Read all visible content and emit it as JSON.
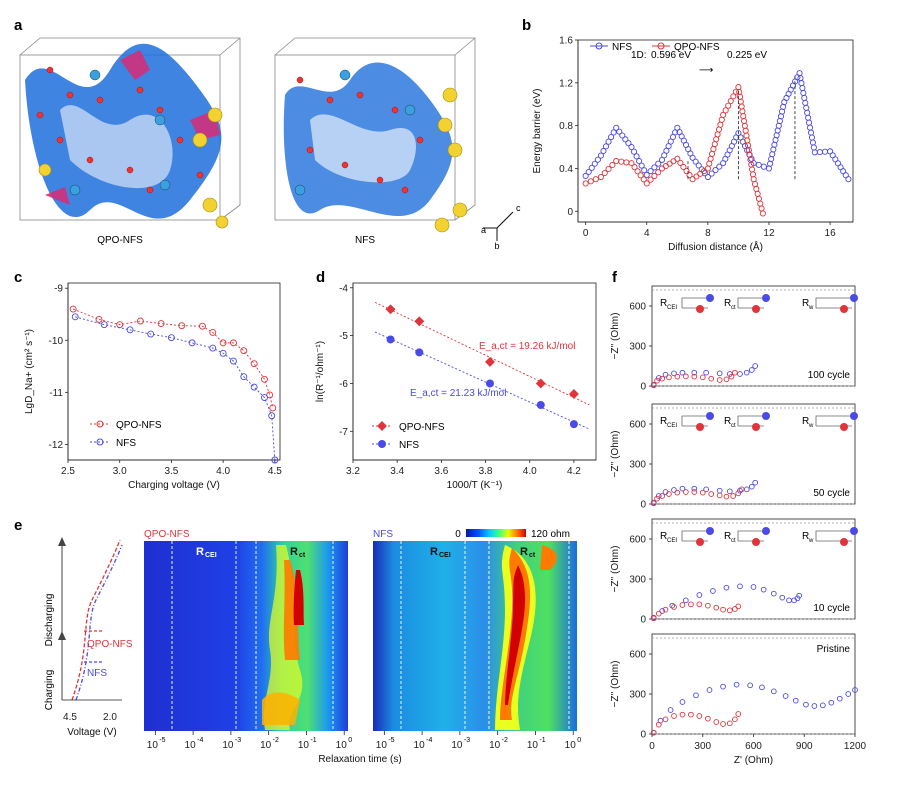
{
  "panel_labels": [
    "a",
    "b",
    "c",
    "d",
    "e",
    "f"
  ],
  "panel_a": {
    "structures": [
      "QPO-NFS",
      "NFS"
    ],
    "axes_labels": [
      "a",
      "b",
      "c"
    ]
  },
  "panel_e": {
    "legend_qpo": "QPO-NFS",
    "legend_nfs": "NFS",
    "label_discharging": "Discharging",
    "label_charging": "Charging",
    "voltage_xlabel": "Voltage (V)",
    "voltage_ticks": [
      "4.5",
      "2.0"
    ],
    "heatmap_titles": [
      "QPO-NFS",
      "NFS"
    ],
    "colorbar_min": "0",
    "colorbar_max": "120 ohm",
    "region_labels": [
      "R",
      "CEI",
      "R",
      "ct"
    ],
    "xlabel": "Relaxation time (s)",
    "x_ticks": [
      "10",
      "-5",
      "10",
      "-4",
      "10",
      "-3",
      "10",
      "-2",
      "10",
      "-1",
      "10",
      "0"
    ],
    "colors": {
      "qpo": "#e0343a",
      "nfs": "#4a4ae6"
    }
  },
  "panel_f": {
    "cycles": [
      "100 cycle",
      "50 cycle",
      "10 cycle",
      "Pristine"
    ],
    "ylabel": "−Z'' (Ohm)",
    "xlabel": "Z' (Ohm)",
    "x_ticks": [
      "0",
      "300",
      "600",
      "900",
      "1200"
    ],
    "y_ticks": [
      "0",
      "300",
      "600"
    ],
    "circuit_labels": [
      "R",
      "CEI",
      "R",
      "ct",
      "R",
      "w"
    ]
  },
  "chart_data": [
    {
      "id": "b",
      "type": "line",
      "title": "",
      "xlabel": "Diffusion distance (Å)",
      "ylabel": "Energy barrier (eV)",
      "xlim": [
        -0.5,
        17.5
      ],
      "ylim": [
        -0.1,
        1.6
      ],
      "x_ticks": [
        "0",
        "4",
        "8",
        "12",
        "16"
      ],
      "y_ticks": [
        "0",
        "0.4",
        "0.8",
        "1.2",
        "1.6"
      ],
      "annotation": {
        "prefix": "1D:",
        "from": "0.596 eV",
        "to": "0.225 eV"
      },
      "legend_position": "top",
      "series": [
        {
          "name": "NFS",
          "color": "#4a4ae6",
          "x": [
            0,
            1,
            2,
            3,
            4,
            5,
            6,
            7,
            8,
            9,
            10,
            11,
            12,
            13,
            14,
            15,
            16,
            17.2
          ],
          "y": [
            0.33,
            0.52,
            0.78,
            0.6,
            0.34,
            0.48,
            0.78,
            0.5,
            0.32,
            0.45,
            0.73,
            0.45,
            0.4,
            1.02,
            1.29,
            0.55,
            0.56,
            0.3
          ]
        },
        {
          "name": "QPO-NFS",
          "color": "#e0343a",
          "x": [
            0,
            1,
            2,
            3,
            4,
            5,
            6,
            7,
            8,
            9,
            10,
            11,
            11.6
          ],
          "y": [
            0.26,
            0.32,
            0.47,
            0.45,
            0.26,
            0.4,
            0.49,
            0.3,
            0.4,
            0.9,
            1.16,
            0.3,
            -0.02
          ]
        }
      ],
      "dashed_markers_x": [
        6.7,
        10,
        13.7
      ]
    },
    {
      "id": "c",
      "type": "line",
      "title": "",
      "xlabel": "Charging voltage (V)",
      "ylabel": "LgD_Na+ (cm² s⁻¹)",
      "xlim": [
        2.5,
        4.55
      ],
      "ylim": [
        -12.3,
        -8.9
      ],
      "x_ticks": [
        "2.5",
        "3.0",
        "3.5",
        "4.0",
        "4.5"
      ],
      "y_ticks": [
        "-9",
        "-10",
        "-11",
        "-12"
      ],
      "legend_position": "bottom-left",
      "series": [
        {
          "name": "QPO-NFS",
          "color": "#e0343a",
          "x": [
            2.55,
            2.8,
            3.0,
            3.2,
            3.4,
            3.6,
            3.8,
            3.9,
            4.0,
            4.1,
            4.2,
            4.3,
            4.4,
            4.45,
            4.48
          ],
          "y": [
            -9.4,
            -9.6,
            -9.7,
            -9.63,
            -9.68,
            -9.72,
            -9.73,
            -9.85,
            -10.05,
            -10.05,
            -10.2,
            -10.45,
            -10.75,
            -11.05,
            -11.3
          ]
        },
        {
          "name": "NFS",
          "color": "#4a4ae6",
          "x": [
            2.57,
            2.85,
            3.1,
            3.3,
            3.5,
            3.7,
            3.9,
            4.0,
            4.1,
            4.2,
            4.3,
            4.4,
            4.47,
            4.5
          ],
          "y": [
            -9.55,
            -9.7,
            -9.8,
            -9.88,
            -9.95,
            -10.05,
            -10.15,
            -10.25,
            -10.4,
            -10.7,
            -10.9,
            -11.1,
            -11.45,
            -12.3
          ]
        }
      ]
    },
    {
      "id": "d",
      "type": "scatter",
      "title": "",
      "xlabel": "1000/T (K⁻¹)",
      "ylabel": "ln(R⁻¹/ohm⁻¹)",
      "xlim": [
        3.2,
        4.3
      ],
      "ylim": [
        -7.6,
        -3.9
      ],
      "x_ticks": [
        "3.2",
        "3.4",
        "3.6",
        "3.8",
        "4.0",
        "4.2"
      ],
      "y_ticks": [
        "-4",
        "-5",
        "-6",
        "-7"
      ],
      "legend_position": "bottom-left",
      "series": [
        {
          "name": "QPO-NFS",
          "color": "#e0343a",
          "x": [
            3.37,
            3.5,
            3.82,
            4.05,
            4.2
          ],
          "y": [
            -4.45,
            -4.7,
            -5.55,
            -6.0,
            -6.22
          ],
          "fit_label": "E_a,ct = 19.26 kJ/mol"
        },
        {
          "name": "NFS",
          "color": "#4a4ae6",
          "x": [
            3.37,
            3.5,
            3.82,
            4.05,
            4.2
          ],
          "y": [
            -5.08,
            -5.35,
            -6.0,
            -6.45,
            -6.85
          ],
          "fit_label": "E_a,ct = 21.23 kJ/mol"
        }
      ]
    },
    {
      "id": "f",
      "type": "scatter",
      "title": "",
      "xlabel": "Z' (Ohm)",
      "ylabel": "−Z'' (Ohm)",
      "xlim": [
        0,
        1200
      ],
      "ylim": [
        0,
        750
      ],
      "panels": [
        {
          "cycle": "100 cycle",
          "series": [
            {
              "name": "NFS",
              "color": "#4a4ae6",
              "x": [
                10,
                40,
                80,
                130,
                180,
                250,
                320,
                400,
                460,
                520,
                560,
                590,
                610
              ],
              "y": [
                10,
                60,
                85,
                95,
                100,
                100,
                100,
                95,
                90,
                90,
                100,
                120,
                150
              ]
            },
            {
              "name": "QPO-NFS",
              "color": "#e0343a",
              "x": [
                10,
                30,
                60,
                100,
                150,
                200,
                250,
                300,
                350,
                400,
                440,
                470,
                490
              ],
              "y": [
                5,
                40,
                55,
                65,
                70,
                72,
                70,
                65,
                55,
                45,
                50,
                70,
                100
              ]
            }
          ]
        },
        {
          "cycle": "50 cycle",
          "series": [
            {
              "name": "NFS",
              "color": "#4a4ae6",
              "x": [
                10,
                40,
                80,
                130,
                180,
                250,
                320,
                400,
                460,
                520,
                560,
                590,
                610
              ],
              "y": [
                10,
                60,
                90,
                105,
                115,
                115,
                110,
                100,
                95,
                100,
                110,
                130,
                160
              ]
            },
            {
              "name": "QPO-NFS",
              "color": "#e0343a",
              "x": [
                10,
                30,
                60,
                100,
                150,
                200,
                250,
                300,
                350,
                400,
                440,
                480,
                510,
                530
              ],
              "y": [
                5,
                40,
                60,
                75,
                85,
                90,
                90,
                85,
                75,
                65,
                55,
                60,
                80,
                110
              ]
            }
          ]
        },
        {
          "cycle": "10 cycle",
          "series": [
            {
              "name": "NFS",
              "color": "#4a4ae6",
              "x": [
                10,
                60,
                120,
                200,
                280,
                360,
                440,
                520,
                600,
                660,
                720,
                770,
                810,
                840,
                860,
                870
              ],
              "y": [
                10,
                60,
                100,
                140,
                180,
                210,
                235,
                245,
                240,
                220,
                190,
                160,
                140,
                140,
                155,
                175
              ]
            },
            {
              "name": "QPO-NFS",
              "color": "#e0343a",
              "x": [
                10,
                40,
                80,
                130,
                180,
                230,
                280,
                330,
                380,
                420,
                460,
                490,
                510
              ],
              "y": [
                5,
                40,
                70,
                90,
                105,
                110,
                110,
                100,
                85,
                70,
                65,
                75,
                95
              ]
            }
          ]
        },
        {
          "cycle": "Pristine",
          "series": [
            {
              "name": "NFS",
              "color": "#4a4ae6",
              "x": [
                10,
                50,
                110,
                180,
                260,
                340,
                420,
                500,
                580,
                650,
                720,
                790,
                850,
                910,
                960,
                1010,
                1060,
                1110,
                1160,
                1200
              ],
              "y": [
                10,
                100,
                180,
                240,
                290,
                330,
                355,
                370,
                365,
                350,
                320,
                285,
                250,
                220,
                210,
                215,
                235,
                265,
                300,
                330
              ]
            },
            {
              "name": "QPO-NFS",
              "color": "#e0343a",
              "x": [
                10,
                40,
                80,
                130,
                180,
                230,
                280,
                330,
                380,
                420,
                460,
                490,
                510
              ],
              "y": [
                10,
                70,
                110,
                135,
                145,
                145,
                135,
                115,
                90,
                75,
                80,
                110,
                150
              ]
            }
          ]
        }
      ]
    }
  ]
}
